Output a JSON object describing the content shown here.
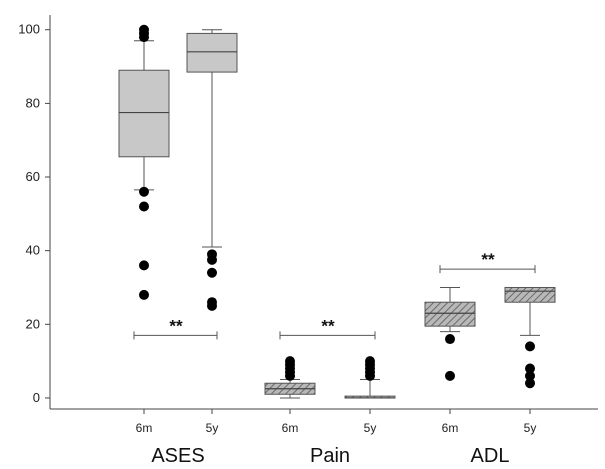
{
  "chart_data": {
    "type": "box",
    "ylim": [
      -3,
      104
    ],
    "yticks": [
      0,
      20,
      40,
      60,
      80,
      100
    ],
    "grid": false,
    "colors": {
      "box_fill": "#c8c8c8",
      "hatch_fill": "#a0a0a0",
      "stroke": "#555555",
      "outlier": "#000000"
    },
    "groups": [
      {
        "label": "ASES",
        "boxes": [
          "6m",
          "5y"
        ]
      },
      {
        "label": "Pain",
        "boxes": [
          "6m",
          "5y"
        ]
      },
      {
        "label": "ADL",
        "boxes": [
          "6m",
          "5y"
        ]
      }
    ],
    "boxes": [
      {
        "group": "ASES",
        "label": "6m",
        "whisker_low": 56.5,
        "q1": 65.5,
        "median": 77.5,
        "q3": 89,
        "whisker_high": 97,
        "outliers": [
          98,
          99,
          100,
          56,
          52,
          36,
          28
        ],
        "hatched": false
      },
      {
        "group": "ASES",
        "label": "5y",
        "whisker_low": 41,
        "q1": 88.5,
        "median": 94,
        "q3": 99,
        "whisker_high": 100,
        "outliers": [
          39,
          37.5,
          34,
          26,
          25
        ],
        "hatched": false
      },
      {
        "group": "Pain",
        "label": "6m",
        "whisker_low": 0,
        "q1": 1,
        "median": 2.5,
        "q3": 4,
        "whisker_high": 5,
        "outliers": [
          6,
          7,
          8,
          9,
          10
        ],
        "hatched": true
      },
      {
        "group": "Pain",
        "label": "5y",
        "whisker_low": 0,
        "q1": 0,
        "median": 0,
        "q3": 0.5,
        "whisker_high": 5,
        "outliers": [
          6,
          7,
          8,
          9,
          10
        ],
        "hatched": true
      },
      {
        "group": "ADL",
        "label": "6m",
        "whisker_low": 18,
        "q1": 19.5,
        "median": 23,
        "q3": 26,
        "whisker_high": 30,
        "outliers": [
          16,
          6
        ],
        "hatched": true
      },
      {
        "group": "ADL",
        "label": "5y",
        "whisker_low": 17,
        "q1": 26,
        "median": 29,
        "q3": 30,
        "whisker_high": 30,
        "outliers": [
          14,
          8,
          6,
          4
        ],
        "hatched": true
      }
    ],
    "significance": [
      {
        "group": "ASES",
        "y": 17,
        "label": "**"
      },
      {
        "group": "Pain",
        "y": 17,
        "label": "**"
      },
      {
        "group": "ADL",
        "y": 35,
        "label": "**"
      }
    ]
  }
}
